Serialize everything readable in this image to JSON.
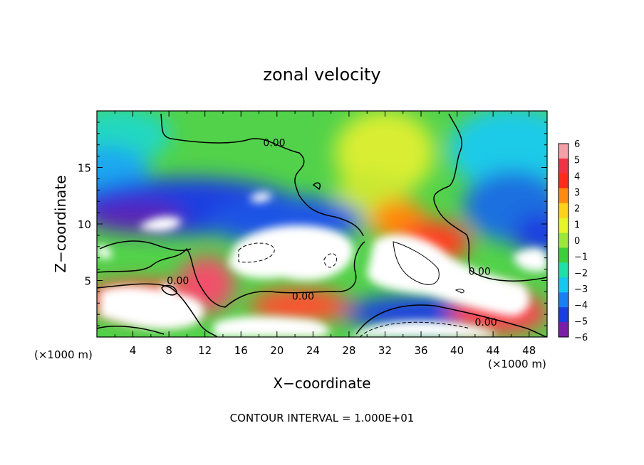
{
  "chart_data": {
    "type": "heatmap",
    "title": "zonal velocity",
    "xlabel": "X−coordinate",
    "ylabel": "Z−coordinate",
    "x_unit_left": "(×1000 m)",
    "x_unit_right": "(×1000 m)",
    "footer": "CONTOUR INTERVAL = 1.000E+01",
    "xlim": [
      0,
      50
    ],
    "ylim": [
      0,
      20
    ],
    "x_ticks": [
      4,
      8,
      12,
      16,
      20,
      24,
      28,
      32,
      36,
      40,
      44,
      48
    ],
    "y_ticks": [
      5,
      10,
      15
    ],
    "colorbar": {
      "levels": [
        6,
        5,
        4,
        3,
        2,
        1,
        0,
        -1,
        -2,
        -3,
        -4,
        -5,
        -6
      ],
      "colors": [
        "#f4a0a8",
        "#ee3344",
        "#ff2a1a",
        "#ff8a10",
        "#ffd21a",
        "#e6f52a",
        "#9ce83a",
        "#3ccf3a",
        "#1ee0a8",
        "#16c8f0",
        "#1a7ff2",
        "#1a3ee0",
        "#7a1ea8"
      ],
      "min": -6,
      "max": 6
    },
    "contour_labels": [
      {
        "text": "0.00",
        "x": 19.7,
        "z": 16.9
      },
      {
        "text": "0.00",
        "x": 22.9,
        "z": 3.3
      },
      {
        "text": "0.00",
        "x": 9.0,
        "z": 4.7
      },
      {
        "text": "0.00",
        "x": 42.5,
        "z": 5.5
      },
      {
        "text": "0.00",
        "x": 43.2,
        "z": 1.0
      }
    ],
    "saturation_color_above_max": "#ffffff"
  }
}
